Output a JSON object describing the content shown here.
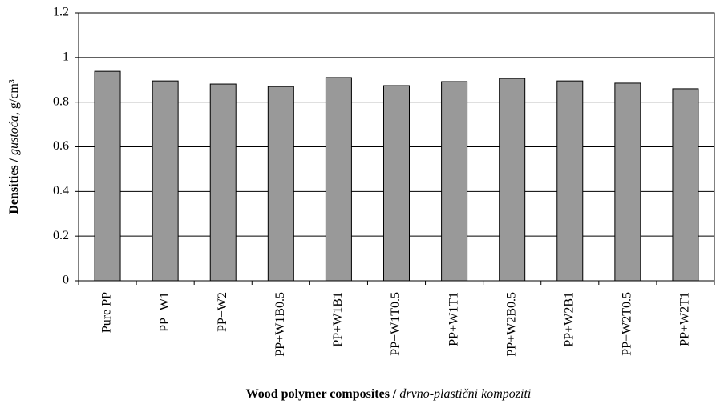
{
  "chart_data": {
    "type": "bar",
    "categories": [
      "Pure PP",
      "PP+W1",
      "PP+W2",
      "PP+W1B0.5",
      "PP+W1B1",
      "PP+W1T0.5",
      "PP+W1T1",
      "PP+W2B0.5",
      "PP+W2B1",
      "PP+W2T0.5",
      "PP+W2T1"
    ],
    "values": [
      0.938,
      0.895,
      0.881,
      0.87,
      0.91,
      0.874,
      0.892,
      0.906,
      0.895,
      0.885,
      0.86
    ],
    "color": "#999999",
    "ylim": [
      0,
      1.2
    ],
    "yticks": [
      0,
      0.2,
      0.4,
      0.6,
      0.8,
      1,
      1.2
    ],
    "grid": true,
    "xlabel": [
      {
        "text": "Wood polymer composites /",
        "style": "bold"
      },
      {
        "text": "drvno-plastični kompoziti",
        "style": "italic"
      }
    ],
    "ylabel": [
      {
        "text": "Densities /",
        "style": "bold"
      },
      {
        "text": "gustoća,",
        "style": "italic"
      },
      {
        "text": "g/cm³",
        "style": "normal"
      }
    ]
  }
}
